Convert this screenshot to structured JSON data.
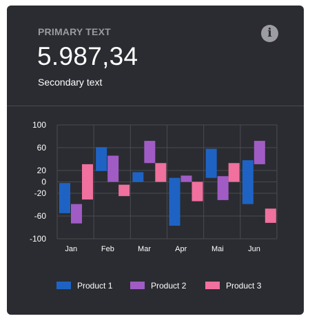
{
  "card": {
    "primary_label": "PRIMARY TEXT",
    "main_value": "5.987,34",
    "secondary_text": "Secondary text",
    "info_icon": "info-icon"
  },
  "colors": {
    "card_bg": "#2b2c31",
    "grid": "#4a4b50",
    "Product 1": "#1e63c4",
    "Product 2": "#a05cc4",
    "Product 3": "#f0709e"
  },
  "chart_data": {
    "type": "bar",
    "subtype": "floating-range",
    "categories": [
      "Jan",
      "Feb",
      "Mar",
      "Apr",
      "Mai",
      "Jun"
    ],
    "series": [
      {
        "name": "Product 1",
        "ranges": [
          [
            -55,
            -2
          ],
          [
            19,
            61
          ],
          [
            0,
            17
          ],
          [
            -77,
            7
          ],
          [
            7,
            58
          ],
          [
            -39,
            38
          ]
        ]
      },
      {
        "name": "Product 2",
        "ranges": [
          [
            -73,
            -39
          ],
          [
            0,
            46
          ],
          [
            33,
            72
          ],
          [
            0,
            11
          ],
          [
            -32,
            10
          ],
          [
            31,
            72
          ]
        ]
      },
      {
        "name": "Product 3",
        "ranges": [
          [
            -31,
            31
          ],
          [
            -25,
            -5
          ],
          [
            0,
            33
          ],
          [
            -34,
            0
          ],
          [
            0,
            33
          ],
          [
            -72,
            -47
          ]
        ]
      }
    ],
    "ylim": [
      -100,
      100
    ],
    "yticks": [
      100,
      60,
      20,
      0,
      -20,
      -60,
      -100
    ],
    "grid": true,
    "legend": "bottom"
  }
}
